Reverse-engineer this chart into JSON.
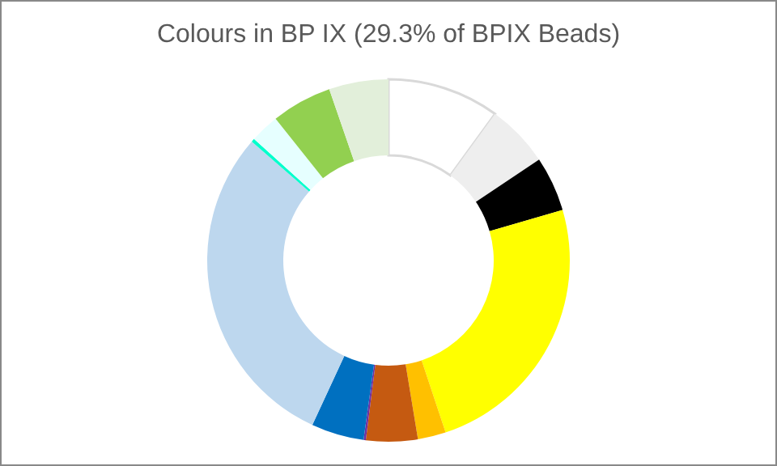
{
  "chart_data": {
    "type": "donut",
    "title": "Colours in BP IX (29.3% of BPIX Beads)",
    "categories": [
      null,
      null,
      null,
      null,
      null,
      null,
      null,
      null,
      null,
      null,
      null,
      null,
      null
    ],
    "values": [
      10.0,
      5.6,
      4.9,
      24.4,
      2.5,
      4.6,
      0.2,
      4.7,
      29.5,
      0.3,
      2.6,
      5.4,
      5.3
    ],
    "colors": [
      "#ffffff",
      "#eeeeee",
      "#000000",
      "#ffff00",
      "#ffc000",
      "#c55a11",
      "#7030a0",
      "#0070c0",
      "#bdd7ee",
      "#00ffcc",
      "#e6ffff",
      "#92d050",
      "#e2efda"
    ],
    "legend": false
  }
}
